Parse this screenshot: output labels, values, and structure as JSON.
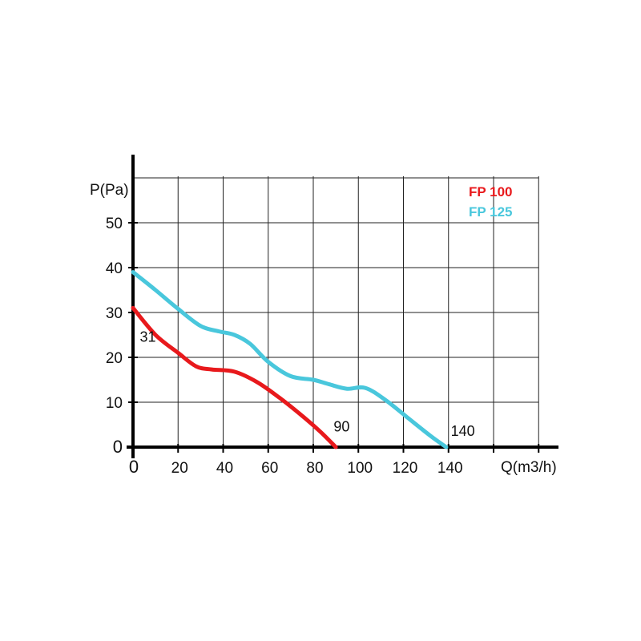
{
  "chart_data": {
    "type": "line",
    "xlabel": "Q(m3/h)",
    "ylabel": "P(Pa)",
    "xlim": [
      0,
      180
    ],
    "ylim": [
      0,
      60
    ],
    "x_ticks": [
      0,
      20,
      40,
      60,
      80,
      100,
      120,
      140
    ],
    "y_ticks": [
      0,
      10,
      20,
      30,
      40,
      50
    ],
    "grid": true,
    "legend_position": "top-right",
    "series": [
      {
        "name": "FP 100",
        "color": "#e8191c",
        "points": [
          [
            0,
            31
          ],
          [
            10,
            25
          ],
          [
            20,
            21
          ],
          [
            28,
            18
          ],
          [
            35,
            17.3
          ],
          [
            45,
            16.8
          ],
          [
            55,
            14.5
          ],
          [
            65,
            11
          ],
          [
            75,
            7
          ],
          [
            83,
            3.5
          ],
          [
            90,
            0
          ]
        ]
      },
      {
        "name": "FP 125",
        "color": "#49c7dc",
        "points": [
          [
            0,
            39
          ],
          [
            10,
            35
          ],
          [
            20,
            30.8
          ],
          [
            30,
            27
          ],
          [
            38,
            25.8
          ],
          [
            45,
            25
          ],
          [
            52,
            23
          ],
          [
            60,
            19
          ],
          [
            70,
            15.8
          ],
          [
            80,
            15
          ],
          [
            87,
            14
          ],
          [
            95,
            13
          ],
          [
            103,
            13.2
          ],
          [
            112,
            10.5
          ],
          [
            122,
            6.5
          ],
          [
            132,
            2.5
          ],
          [
            139,
            0
          ]
        ]
      }
    ],
    "annotations": [
      {
        "text": "31",
        "x": 3,
        "y": 23.5
      },
      {
        "text": "90",
        "x": 89,
        "y": 3.5
      },
      {
        "text": "140",
        "x": 141,
        "y": 2.5
      }
    ]
  }
}
